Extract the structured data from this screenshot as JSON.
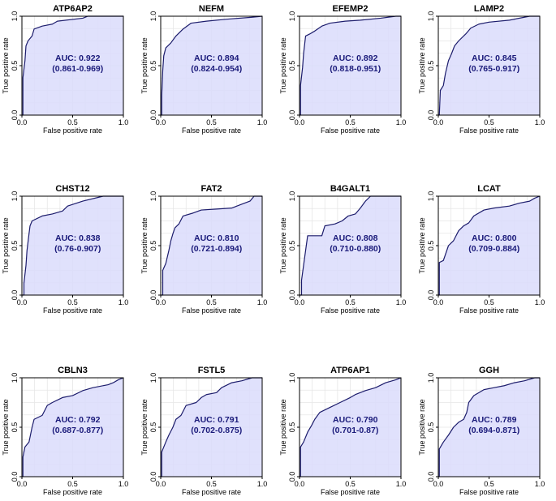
{
  "figure": {
    "xlabel": "False positive rate",
    "ylabel": "True positive rate",
    "auc_prefix": "AUC: ",
    "x_ticks": [
      "0.0",
      "0.5",
      "1.0"
    ],
    "y_ticks": [
      "0.0",
      "0.5",
      "1.0"
    ]
  },
  "colors": {
    "fill": "#dadcfc",
    "curve": "#1c1c6c",
    "text": "#1a1a7a",
    "grid": "#e6e6e6"
  },
  "chart_data": [
    {
      "type": "line",
      "title": "ATP6AP2",
      "auc": "0.922",
      "ci": "(0.861-0.969)",
      "xlim": [
        0,
        1
      ],
      "ylim": [
        0,
        1
      ],
      "roc": [
        [
          0,
          0
        ],
        [
          0.01,
          0
        ],
        [
          0.01,
          0.38
        ],
        [
          0.03,
          0.55
        ],
        [
          0.04,
          0.7
        ],
        [
          0.06,
          0.75
        ],
        [
          0.1,
          0.8
        ],
        [
          0.12,
          0.87
        ],
        [
          0.2,
          0.9
        ],
        [
          0.3,
          0.92
        ],
        [
          0.35,
          0.95
        ],
        [
          0.6,
          0.98
        ],
        [
          0.65,
          1
        ],
        [
          1,
          1
        ]
      ]
    },
    {
      "type": "line",
      "title": "NEFM",
      "auc": "0.894",
      "ci": "(0.824-0.954)",
      "xlim": [
        0,
        1
      ],
      "ylim": [
        0,
        1
      ],
      "roc": [
        [
          0,
          0
        ],
        [
          0.01,
          0
        ],
        [
          0.01,
          0.2
        ],
        [
          0.02,
          0.45
        ],
        [
          0.03,
          0.6
        ],
        [
          0.05,
          0.68
        ],
        [
          0.1,
          0.73
        ],
        [
          0.15,
          0.8
        ],
        [
          0.22,
          0.87
        ],
        [
          0.3,
          0.93
        ],
        [
          0.45,
          0.95
        ],
        [
          0.65,
          0.97
        ],
        [
          0.9,
          0.99
        ],
        [
          1,
          1
        ]
      ]
    },
    {
      "type": "line",
      "title": "EFEMP2",
      "auc": "0.892",
      "ci": "(0.818-0.951)",
      "xlim": [
        0,
        1
      ],
      "ylim": [
        0,
        1
      ],
      "roc": [
        [
          0,
          0
        ],
        [
          0.01,
          0
        ],
        [
          0.01,
          0.3
        ],
        [
          0.03,
          0.48
        ],
        [
          0.04,
          0.62
        ],
        [
          0.06,
          0.8
        ],
        [
          0.1,
          0.82
        ],
        [
          0.15,
          0.85
        ],
        [
          0.22,
          0.9
        ],
        [
          0.3,
          0.93
        ],
        [
          0.45,
          0.95
        ],
        [
          0.6,
          0.96
        ],
        [
          0.8,
          0.98
        ],
        [
          0.95,
          1
        ],
        [
          1,
          1
        ]
      ]
    },
    {
      "type": "line",
      "title": "LAMP2",
      "auc": "0.845",
      "ci": "(0.765-0.917)",
      "xlim": [
        0,
        1
      ],
      "ylim": [
        0,
        1
      ],
      "roc": [
        [
          0,
          0
        ],
        [
          0.01,
          0
        ],
        [
          0.02,
          0.25
        ],
        [
          0.05,
          0.3
        ],
        [
          0.07,
          0.42
        ],
        [
          0.1,
          0.55
        ],
        [
          0.13,
          0.62
        ],
        [
          0.16,
          0.7
        ],
        [
          0.2,
          0.75
        ],
        [
          0.27,
          0.82
        ],
        [
          0.32,
          0.88
        ],
        [
          0.4,
          0.92
        ],
        [
          0.5,
          0.94
        ],
        [
          0.7,
          0.96
        ],
        [
          0.9,
          1
        ],
        [
          1,
          1
        ]
      ]
    },
    {
      "type": "line",
      "title": "CHST12",
      "auc": "0.838",
      "ci": "(0.76-0.907)",
      "xlim": [
        0,
        1
      ],
      "ylim": [
        0,
        1
      ],
      "roc": [
        [
          0,
          0
        ],
        [
          0.02,
          0
        ],
        [
          0.02,
          0.12
        ],
        [
          0.04,
          0.3
        ],
        [
          0.05,
          0.45
        ],
        [
          0.07,
          0.62
        ],
        [
          0.08,
          0.7
        ],
        [
          0.1,
          0.75
        ],
        [
          0.2,
          0.8
        ],
        [
          0.3,
          0.82
        ],
        [
          0.4,
          0.85
        ],
        [
          0.45,
          0.9
        ],
        [
          0.6,
          0.95
        ],
        [
          0.8,
          1
        ],
        [
          1,
          1
        ]
      ]
    },
    {
      "type": "line",
      "title": "FAT2",
      "auc": "0.810",
      "ci": "(0.721-0.894)",
      "xlim": [
        0,
        1
      ],
      "ylim": [
        0,
        1
      ],
      "roc": [
        [
          0,
          0
        ],
        [
          0.02,
          0
        ],
        [
          0.02,
          0.25
        ],
        [
          0.05,
          0.32
        ],
        [
          0.08,
          0.45
        ],
        [
          0.1,
          0.55
        ],
        [
          0.12,
          0.62
        ],
        [
          0.14,
          0.68
        ],
        [
          0.18,
          0.72
        ],
        [
          0.22,
          0.8
        ],
        [
          0.32,
          0.83
        ],
        [
          0.4,
          0.86
        ],
        [
          0.55,
          0.87
        ],
        [
          0.7,
          0.88
        ],
        [
          0.8,
          0.92
        ],
        [
          0.88,
          0.95
        ],
        [
          0.92,
          1
        ],
        [
          1,
          1
        ]
      ]
    },
    {
      "type": "line",
      "title": "B4GALT1",
      "auc": "0.808",
      "ci": "(0.710-0.880)",
      "xlim": [
        0,
        1
      ],
      "ylim": [
        0,
        1
      ],
      "roc": [
        [
          0,
          0
        ],
        [
          0.02,
          0
        ],
        [
          0.02,
          0.15
        ],
        [
          0.04,
          0.3
        ],
        [
          0.06,
          0.45
        ],
        [
          0.08,
          0.6
        ],
        [
          0.22,
          0.6
        ],
        [
          0.25,
          0.7
        ],
        [
          0.35,
          0.72
        ],
        [
          0.42,
          0.75
        ],
        [
          0.48,
          0.8
        ],
        [
          0.55,
          0.82
        ],
        [
          0.6,
          0.88
        ],
        [
          0.65,
          0.95
        ],
        [
          0.7,
          1
        ],
        [
          1,
          1
        ]
      ]
    },
    {
      "type": "line",
      "title": "LCAT",
      "auc": "0.800",
      "ci": "(0.709-0.884)",
      "xlim": [
        0,
        1
      ],
      "ylim": [
        0,
        1
      ],
      "roc": [
        [
          0,
          0
        ],
        [
          0.01,
          0
        ],
        [
          0.01,
          0.33
        ],
        [
          0.05,
          0.35
        ],
        [
          0.1,
          0.5
        ],
        [
          0.15,
          0.55
        ],
        [
          0.2,
          0.65
        ],
        [
          0.25,
          0.7
        ],
        [
          0.3,
          0.73
        ],
        [
          0.35,
          0.8
        ],
        [
          0.45,
          0.86
        ],
        [
          0.55,
          0.88
        ],
        [
          0.7,
          0.9
        ],
        [
          0.8,
          0.93
        ],
        [
          0.9,
          0.95
        ],
        [
          0.95,
          0.98
        ],
        [
          1,
          1
        ]
      ]
    },
    {
      "type": "line",
      "title": "CBLN3",
      "auc": "0.792",
      "ci": "(0.687-0.877)",
      "xlim": [
        0,
        1
      ],
      "ylim": [
        0,
        1
      ],
      "roc": [
        [
          0,
          0
        ],
        [
          0.01,
          0
        ],
        [
          0.01,
          0.2
        ],
        [
          0.03,
          0.3
        ],
        [
          0.07,
          0.35
        ],
        [
          0.1,
          0.5
        ],
        [
          0.12,
          0.58
        ],
        [
          0.2,
          0.62
        ],
        [
          0.25,
          0.72
        ],
        [
          0.3,
          0.75
        ],
        [
          0.4,
          0.8
        ],
        [
          0.5,
          0.82
        ],
        [
          0.6,
          0.87
        ],
        [
          0.7,
          0.9
        ],
        [
          0.85,
          0.93
        ],
        [
          0.9,
          0.95
        ],
        [
          0.95,
          0.98
        ],
        [
          1,
          1
        ]
      ]
    },
    {
      "type": "line",
      "title": "FSTL5",
      "auc": "0.791",
      "ci": "(0.702-0.875)",
      "xlim": [
        0,
        1
      ],
      "ylim": [
        0,
        1
      ],
      "roc": [
        [
          0,
          0
        ],
        [
          0.01,
          0
        ],
        [
          0.01,
          0.25
        ],
        [
          0.05,
          0.35
        ],
        [
          0.08,
          0.42
        ],
        [
          0.12,
          0.5
        ],
        [
          0.15,
          0.58
        ],
        [
          0.2,
          0.62
        ],
        [
          0.25,
          0.72
        ],
        [
          0.35,
          0.75
        ],
        [
          0.4,
          0.8
        ],
        [
          0.45,
          0.83
        ],
        [
          0.55,
          0.85
        ],
        [
          0.6,
          0.9
        ],
        [
          0.7,
          0.95
        ],
        [
          0.8,
          0.97
        ],
        [
          0.9,
          1
        ],
        [
          1,
          1
        ]
      ]
    },
    {
      "type": "line",
      "title": "ATP6AP1",
      "auc": "0.790",
      "ci": "(0.701-0.87)",
      "xlim": [
        0,
        1
      ],
      "ylim": [
        0,
        1
      ],
      "roc": [
        [
          0,
          0
        ],
        [
          0.01,
          0
        ],
        [
          0.01,
          0.3
        ],
        [
          0.04,
          0.35
        ],
        [
          0.08,
          0.45
        ],
        [
          0.12,
          0.52
        ],
        [
          0.15,
          0.58
        ],
        [
          0.2,
          0.65
        ],
        [
          0.3,
          0.7
        ],
        [
          0.4,
          0.75
        ],
        [
          0.5,
          0.8
        ],
        [
          0.55,
          0.83
        ],
        [
          0.65,
          0.87
        ],
        [
          0.75,
          0.9
        ],
        [
          0.85,
          0.95
        ],
        [
          0.95,
          0.98
        ],
        [
          1,
          1
        ]
      ]
    },
    {
      "type": "line",
      "title": "GGH",
      "auc": "0.789",
      "ci": "(0.694-0.871)",
      "xlim": [
        0,
        1
      ],
      "ylim": [
        0,
        1
      ],
      "roc": [
        [
          0,
          0
        ],
        [
          0.01,
          0
        ],
        [
          0.01,
          0.28
        ],
        [
          0.05,
          0.35
        ],
        [
          0.1,
          0.42
        ],
        [
          0.15,
          0.5
        ],
        [
          0.2,
          0.55
        ],
        [
          0.25,
          0.58
        ],
        [
          0.28,
          0.65
        ],
        [
          0.3,
          0.75
        ],
        [
          0.35,
          0.82
        ],
        [
          0.45,
          0.88
        ],
        [
          0.55,
          0.9
        ],
        [
          0.65,
          0.92
        ],
        [
          0.75,
          0.95
        ],
        [
          0.85,
          0.97
        ],
        [
          0.95,
          1
        ],
        [
          1,
          1
        ]
      ]
    }
  ]
}
